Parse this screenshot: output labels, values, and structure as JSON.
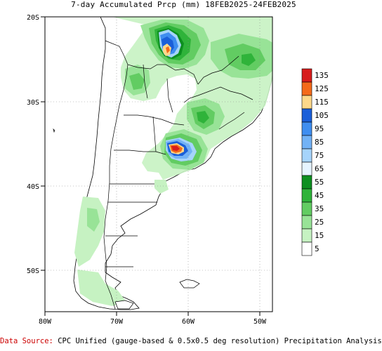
{
  "title": "7-day Accumulated Prcp (mm) 18FEB2025-24FEB2025",
  "footer": {
    "label": "Data Source:",
    "text": "CPC Unified (gauge-based & 0.5x0.5 deg resolution) Precipitation Analysis"
  },
  "axes": {
    "lat_ticks": [
      "20S",
      "30S",
      "40S",
      "50S"
    ],
    "lon_ticks": [
      "80W",
      "70W",
      "60W",
      "50W"
    ]
  },
  "legend": {
    "levels": [
      {
        "label": "135",
        "color": "#d71c1c"
      },
      {
        "label": "125",
        "color": "#f46a1a"
      },
      {
        "label": "115",
        "color": "#fdd88a"
      },
      {
        "label": "105",
        "color": "#1a5fd9"
      },
      {
        "label": "95",
        "color": "#3f8ef0"
      },
      {
        "label": "85",
        "color": "#72b2f6"
      },
      {
        "label": "75",
        "color": "#a6d4fb"
      },
      {
        "label": "65",
        "color": "#e6f4ff"
      },
      {
        "label": "55",
        "color": "#0d8f20"
      },
      {
        "label": "45",
        "color": "#2fb33a"
      },
      {
        "label": "35",
        "color": "#62cc62"
      },
      {
        "label": "25",
        "color": "#98e397"
      },
      {
        "label": "15",
        "color": "#c6f2c2"
      },
      {
        "label": "5",
        "color": "#ffffff"
      }
    ]
  }
}
